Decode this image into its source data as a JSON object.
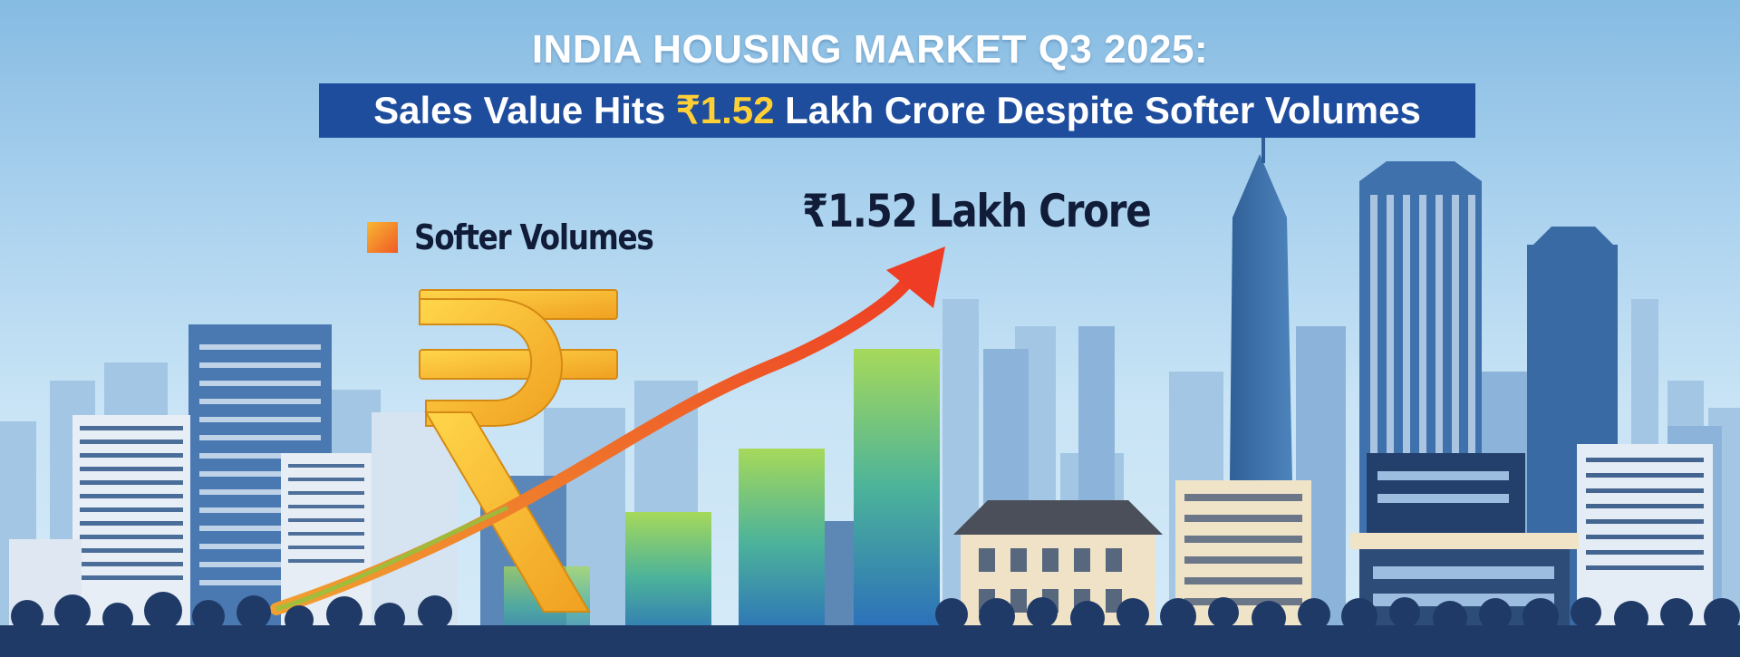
{
  "header": {
    "title": "INDIA HOUSING MARKET Q3 2025:",
    "subtitle_prefix": "Sales Value Hits ",
    "subtitle_highlight": "₹1.52",
    "subtitle_suffix": " Lakh Crore Despite Softer Volumes"
  },
  "legend": {
    "label": "Softer Volumes"
  },
  "callout": {
    "text": "₹1.52 Lakh Crore"
  },
  "illustration": {
    "bars_rising": [
      1,
      2,
      3
    ],
    "icons": [
      "rupee-icon",
      "trend-arrow-icon"
    ]
  },
  "colors": {
    "subtitle_bg": "#1e4d9e",
    "highlight": "#ffd035",
    "arrow": "#ee4b25",
    "rupee": "#f5b52c",
    "bar_top": "#9ed65a",
    "bar_bottom": "#2a6fc4"
  }
}
